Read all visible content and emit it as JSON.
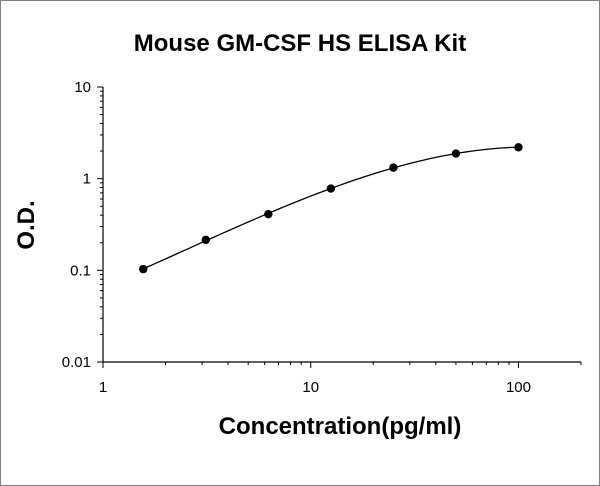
{
  "chart_data": {
    "type": "scatter",
    "title": "Mouse GM-CSF HS ELISA Kit",
    "xlabel": "Concentration(pg/ml)",
    "ylabel": "O.D.",
    "x_scale": "log",
    "y_scale": "log",
    "xlim": [
      1,
      200
    ],
    "ylim": [
      0.01,
      10
    ],
    "x_ticks": [
      "1",
      "10",
      "100"
    ],
    "y_ticks": [
      "0.01",
      "0.1",
      "1",
      "10"
    ],
    "grid": false,
    "legend": "none",
    "series": [
      {
        "x": [
          1.5625,
          3.125,
          6.25,
          12.5,
          25,
          50,
          100
        ],
        "y": [
          0.103,
          0.215,
          0.41,
          0.78,
          1.32,
          1.88,
          2.2
        ],
        "marker": "circle",
        "color": "#000000",
        "fit_line": true
      }
    ]
  }
}
